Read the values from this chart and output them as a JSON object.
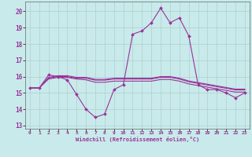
{
  "xlabel": "Windchill (Refroidissement éolien,°C)",
  "background_color": "#c8eaea",
  "grid_color": "#b0d0d0",
  "line_color": "#993399",
  "xlim": [
    -0.5,
    23.5
  ],
  "ylim": [
    12.8,
    20.6
  ],
  "xticks": [
    0,
    1,
    2,
    3,
    4,
    5,
    6,
    7,
    8,
    9,
    10,
    11,
    12,
    13,
    14,
    15,
    16,
    17,
    18,
    19,
    20,
    21,
    22,
    23
  ],
  "yticks": [
    13,
    14,
    15,
    16,
    17,
    18,
    19,
    20
  ],
  "series": [
    [
      15.3,
      15.3,
      16.1,
      16.0,
      15.8,
      14.9,
      14.0,
      13.5,
      13.7,
      15.2,
      15.5,
      18.6,
      18.8,
      19.3,
      20.2,
      19.3,
      19.6,
      18.5,
      15.5,
      15.2,
      15.2,
      15.0,
      14.7,
      15.0
    ],
    [
      15.3,
      15.3,
      15.85,
      15.95,
      15.95,
      15.85,
      15.8,
      15.65,
      15.65,
      15.72,
      15.72,
      15.72,
      15.72,
      15.72,
      15.82,
      15.82,
      15.72,
      15.55,
      15.45,
      15.35,
      15.25,
      15.15,
      15.05,
      15.05
    ],
    [
      15.3,
      15.3,
      15.9,
      16.0,
      16.0,
      15.9,
      15.9,
      15.78,
      15.78,
      15.85,
      15.85,
      15.85,
      15.85,
      15.85,
      15.95,
      15.95,
      15.85,
      15.68,
      15.58,
      15.48,
      15.38,
      15.28,
      15.18,
      15.18
    ],
    [
      15.3,
      15.3,
      15.95,
      16.05,
      16.05,
      15.95,
      15.95,
      15.83,
      15.83,
      15.9,
      15.9,
      15.9,
      15.9,
      15.9,
      16.0,
      16.0,
      15.9,
      15.73,
      15.63,
      15.53,
      15.43,
      15.33,
      15.23,
      15.23
    ]
  ]
}
